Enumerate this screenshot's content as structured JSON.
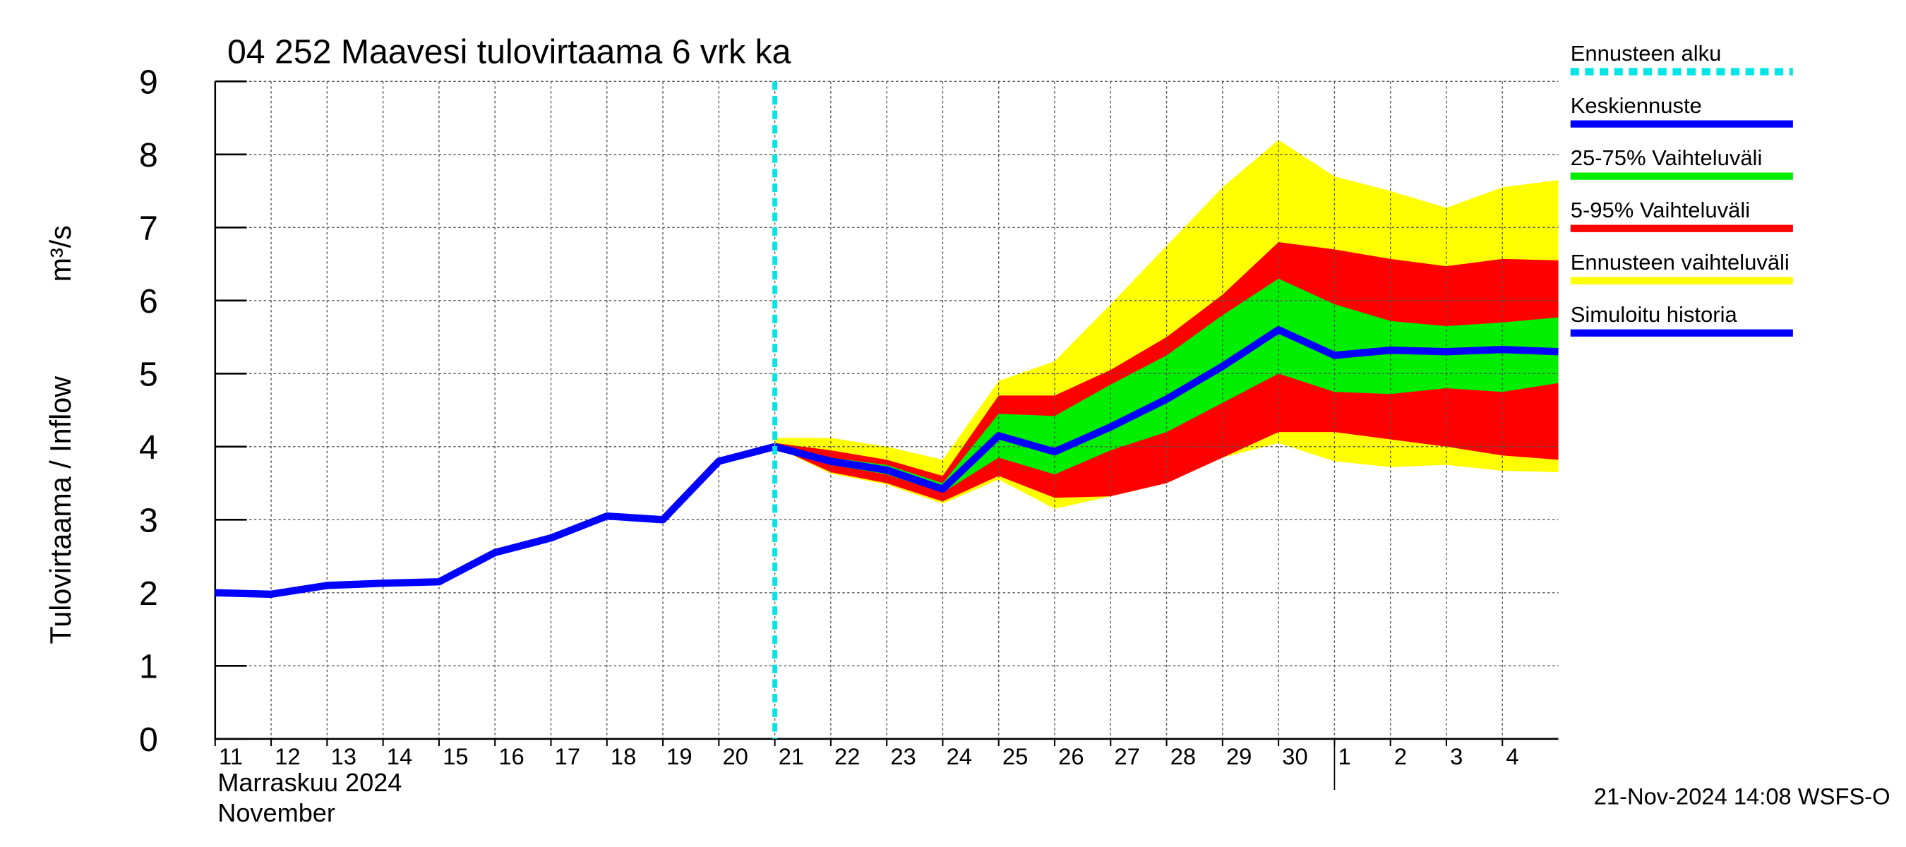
{
  "chart_data": {
    "type": "line",
    "title": "04 252 Maavesi tulovirtaama 6 vrk ka",
    "ylabel": "Tulovirtaama / Inflow",
    "yunit": "m³/s",
    "xlabel_lines": [
      "Marraskuu 2024",
      "November"
    ],
    "footer": "21-Nov-2024 14:08 WSFS-O",
    "x": [
      "2024-11-11",
      "2024-11-12",
      "2024-11-13",
      "2024-11-14",
      "2024-11-15",
      "2024-11-16",
      "2024-11-17",
      "2024-11-18",
      "2024-11-19",
      "2024-11-20",
      "2024-11-21",
      "2024-11-22",
      "2024-11-23",
      "2024-11-24",
      "2024-11-25",
      "2024-11-26",
      "2024-11-27",
      "2024-11-28",
      "2024-11-29",
      "2024-11-30",
      "2024-12-01",
      "2024-12-02",
      "2024-12-03",
      "2024-12-04",
      "2024-12-05"
    ],
    "xlim": [
      "2024-11-11",
      "2024-12-05"
    ],
    "xticks": [
      {
        "value": "2024-11-11",
        "label": "11"
      },
      {
        "value": "2024-11-12",
        "label": "12"
      },
      {
        "value": "2024-11-13",
        "label": "13"
      },
      {
        "value": "2024-11-14",
        "label": "14"
      },
      {
        "value": "2024-11-15",
        "label": "15"
      },
      {
        "value": "2024-11-16",
        "label": "16"
      },
      {
        "value": "2024-11-17",
        "label": "17"
      },
      {
        "value": "2024-11-18",
        "label": "18"
      },
      {
        "value": "2024-11-19",
        "label": "19"
      },
      {
        "value": "2024-11-20",
        "label": "20"
      },
      {
        "value": "2024-11-21",
        "label": "21"
      },
      {
        "value": "2024-11-22",
        "label": "22"
      },
      {
        "value": "2024-11-23",
        "label": "23"
      },
      {
        "value": "2024-11-24",
        "label": "24"
      },
      {
        "value": "2024-11-25",
        "label": "25"
      },
      {
        "value": "2024-11-26",
        "label": "26"
      },
      {
        "value": "2024-11-27",
        "label": "27"
      },
      {
        "value": "2024-11-28",
        "label": "28"
      },
      {
        "value": "2024-11-29",
        "label": "29"
      },
      {
        "value": "2024-11-30",
        "label": "30"
      },
      {
        "value": "2024-12-01",
        "label": "1"
      },
      {
        "value": "2024-12-02",
        "label": "2"
      },
      {
        "value": "2024-12-03",
        "label": "3"
      },
      {
        "value": "2024-12-04",
        "label": "4"
      }
    ],
    "ylim": [
      0,
      9
    ],
    "yticks": [
      0,
      1,
      2,
      3,
      4,
      5,
      6,
      7,
      8,
      9
    ],
    "grid": true,
    "forecast_start": {
      "name": "Ennusteen alku",
      "x": "2024-11-21",
      "color": "#00e5e5"
    },
    "series": [
      {
        "name": "Simuloitu historia",
        "color": "#0000ff",
        "values": [
          2.0,
          1.98,
          2.1,
          2.13,
          2.15,
          2.55,
          2.75,
          3.05,
          3.0,
          3.8,
          4.0,
          null,
          null,
          null,
          null,
          null,
          null,
          null,
          null,
          null,
          null,
          null,
          null,
          null,
          null
        ]
      },
      {
        "name": "Keskiennuste",
        "color": "#0000ff",
        "values": [
          null,
          null,
          null,
          null,
          null,
          null,
          null,
          null,
          null,
          null,
          4.0,
          3.8,
          3.68,
          3.42,
          4.15,
          3.93,
          4.27,
          4.65,
          5.1,
          5.6,
          5.25,
          5.32,
          5.3,
          5.33,
          5.3
        ]
      }
    ],
    "bands": [
      {
        "name": "25-75% Vaihteluväli",
        "color": "#00ee00",
        "low": [
          null,
          null,
          null,
          null,
          null,
          null,
          null,
          null,
          null,
          null,
          4.0,
          3.75,
          3.62,
          3.37,
          3.85,
          3.62,
          3.95,
          4.2,
          4.6,
          5.0,
          4.75,
          4.72,
          4.8,
          4.75,
          4.87
        ],
        "high": [
          null,
          null,
          null,
          null,
          null,
          null,
          null,
          null,
          null,
          null,
          4.05,
          3.85,
          3.75,
          3.5,
          4.45,
          4.42,
          4.85,
          5.25,
          5.8,
          6.3,
          5.95,
          5.72,
          5.65,
          5.7,
          5.77
        ]
      },
      {
        "name": "5-95% Vaihteluväli",
        "color": "#ff0000",
        "low": [
          null,
          null,
          null,
          null,
          null,
          null,
          null,
          null,
          null,
          null,
          4.0,
          3.65,
          3.5,
          3.25,
          3.6,
          3.3,
          3.32,
          3.5,
          3.85,
          4.2,
          4.2,
          4.1,
          4.0,
          3.88,
          3.82
        ],
        "high": [
          null,
          null,
          null,
          null,
          null,
          null,
          null,
          null,
          null,
          null,
          4.05,
          3.95,
          3.82,
          3.6,
          4.7,
          4.7,
          5.05,
          5.5,
          6.08,
          6.8,
          6.7,
          6.57,
          6.47,
          6.57,
          6.55
        ]
      },
      {
        "name": "Ennusteen vaihteluväli",
        "color": "#ffff00",
        "low": [
          null,
          null,
          null,
          null,
          null,
          null,
          null,
          null,
          null,
          null,
          4.0,
          3.63,
          3.48,
          3.22,
          3.55,
          3.15,
          3.32,
          3.5,
          3.85,
          4.05,
          3.8,
          3.72,
          3.75,
          3.67,
          3.65
        ],
        "high": [
          null,
          null,
          null,
          null,
          null,
          null,
          null,
          null,
          null,
          null,
          4.12,
          4.12,
          4.0,
          3.82,
          4.9,
          5.17,
          5.95,
          6.75,
          7.55,
          8.2,
          7.7,
          7.5,
          7.27,
          7.55,
          7.65
        ]
      }
    ]
  }
}
